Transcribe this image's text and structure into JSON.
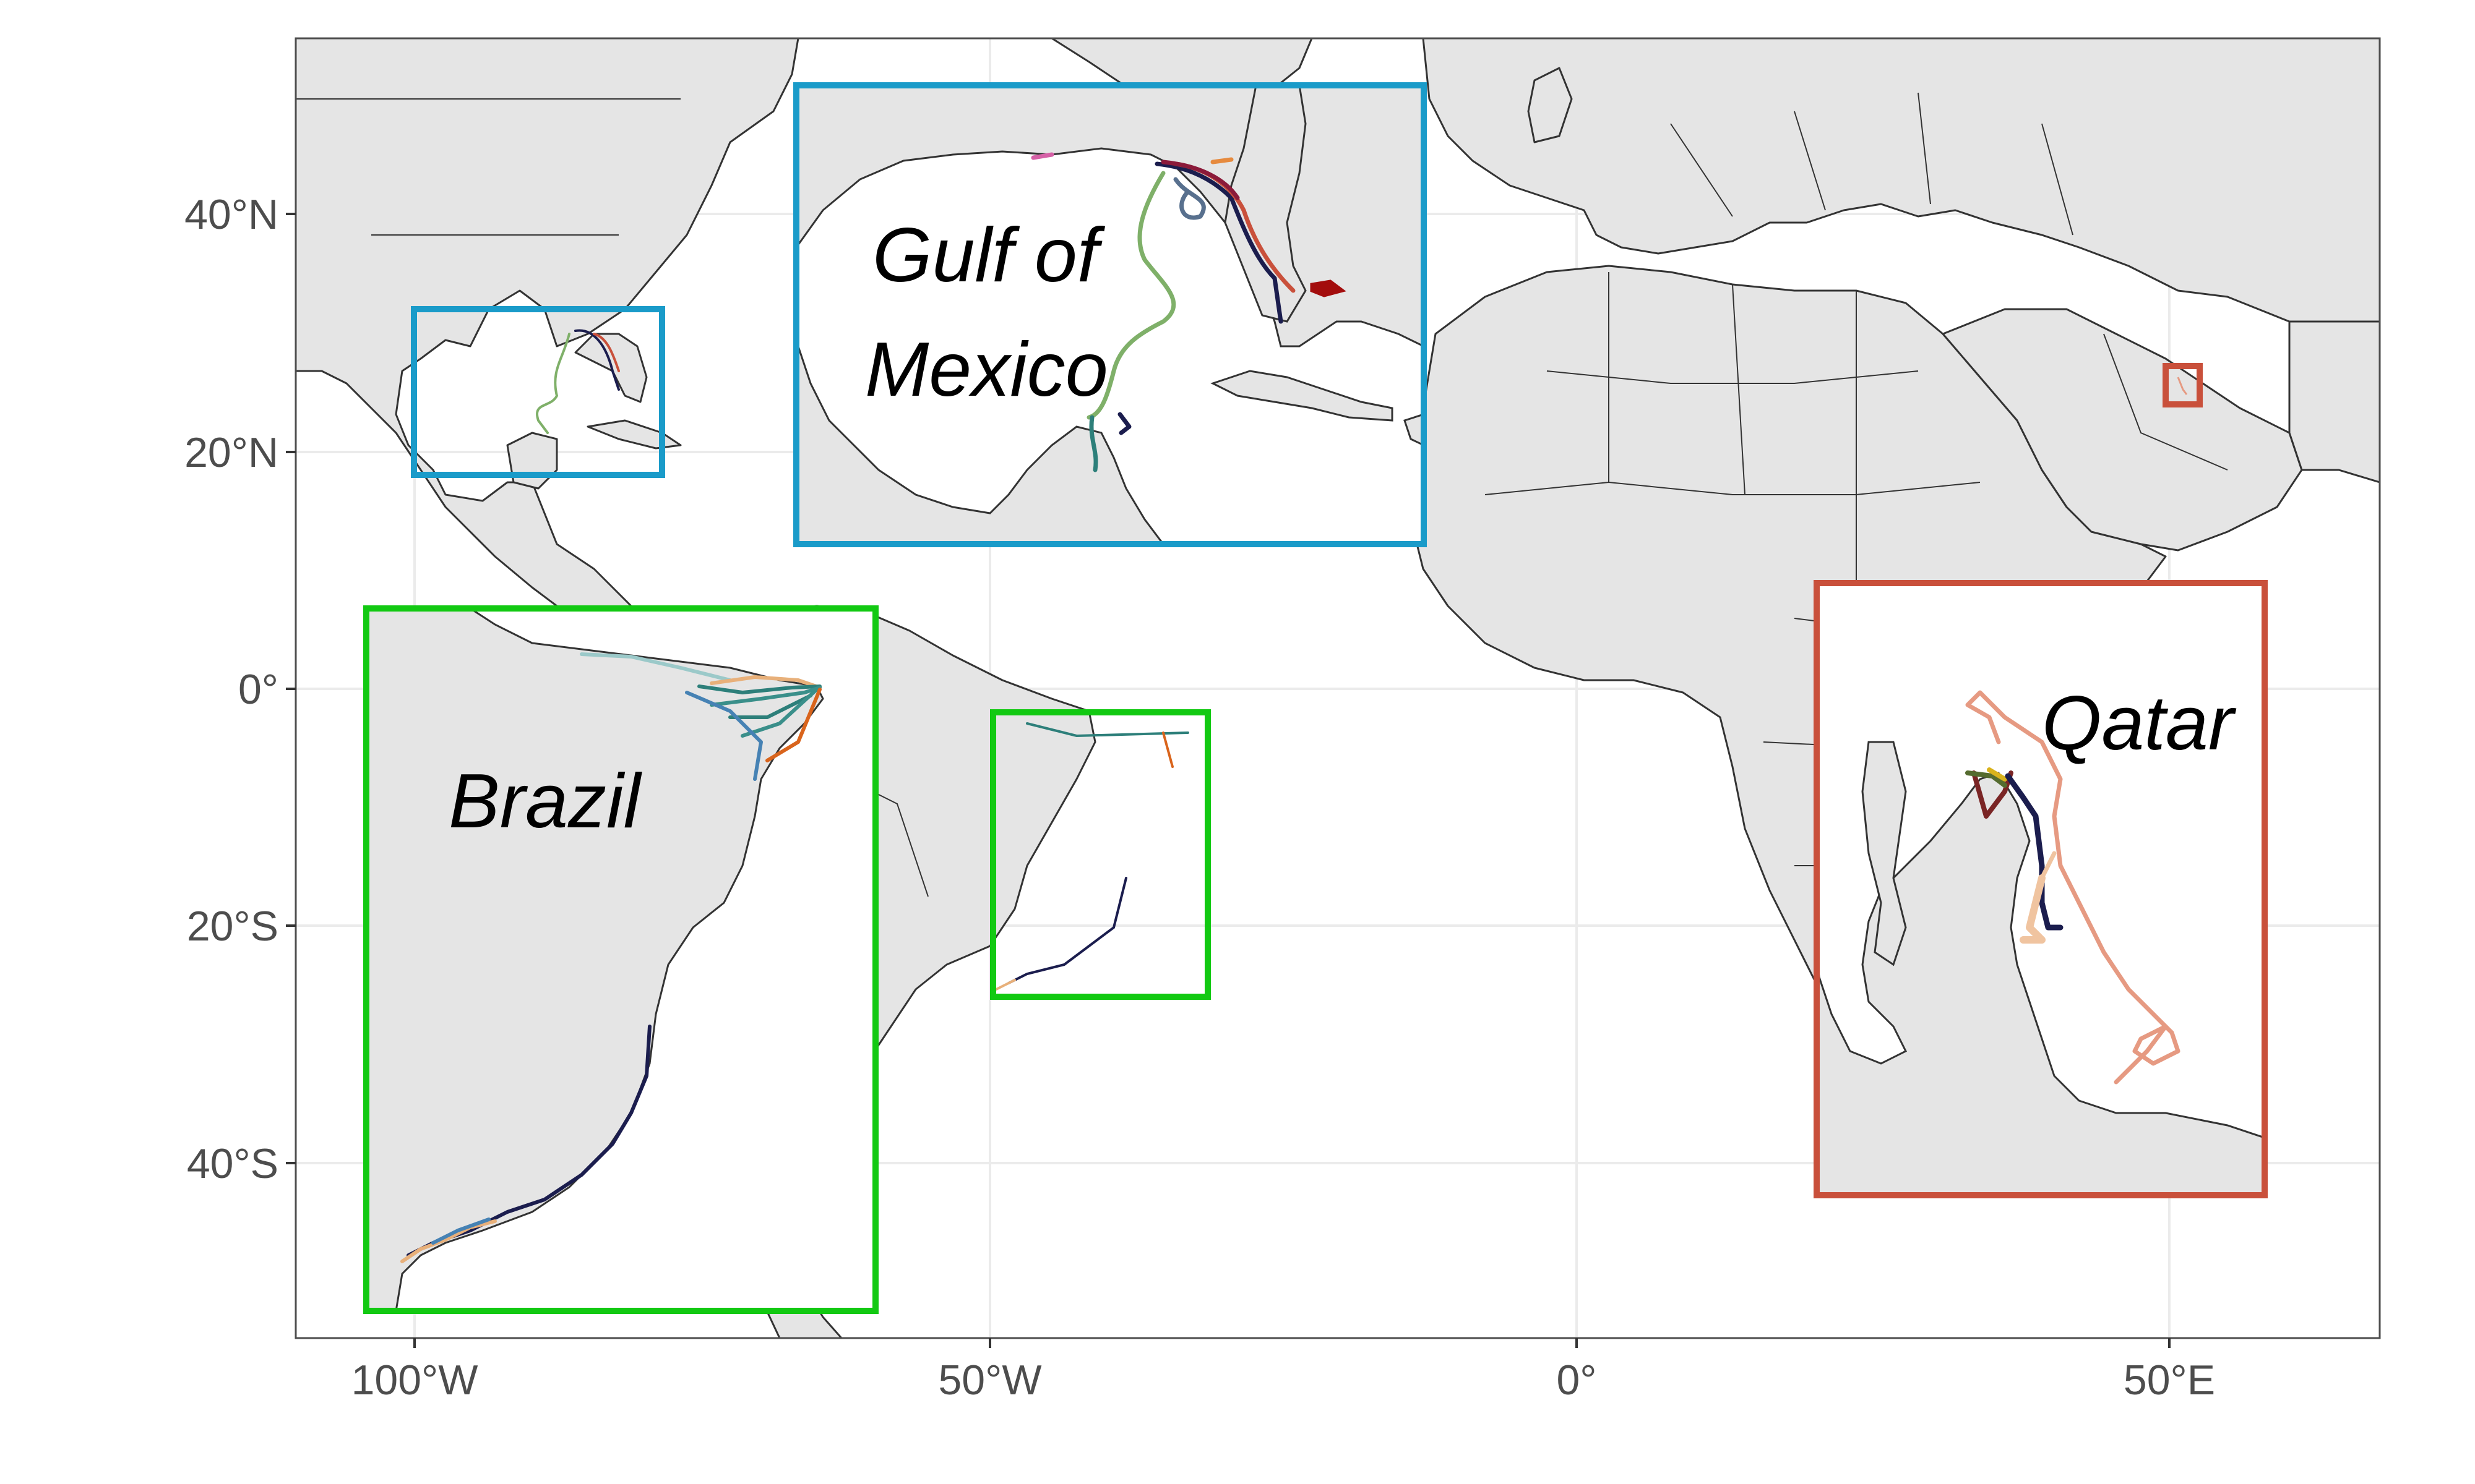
{
  "map": {
    "axes": {
      "x_ticks": [
        "100°W",
        "50°W",
        "0°",
        "50°E"
      ],
      "y_ticks": [
        "40°N",
        "20°N",
        "0°",
        "20°S",
        "40°S"
      ]
    },
    "insets": {
      "gulf": {
        "label_line1": "Gulf of",
        "label_line2": "Mexico",
        "box_color": "#1a9bc9"
      },
      "brazil": {
        "label": "Brazil",
        "box_color": "#12c912"
      },
      "qatar": {
        "label": "Qatar",
        "box_color": "#c9503b"
      }
    },
    "colors": {
      "land": "#e5e5e5",
      "ocean": "#ffffff",
      "coast": "#333333",
      "grid": "#ebebeb",
      "border": "#4d4d4d"
    }
  }
}
